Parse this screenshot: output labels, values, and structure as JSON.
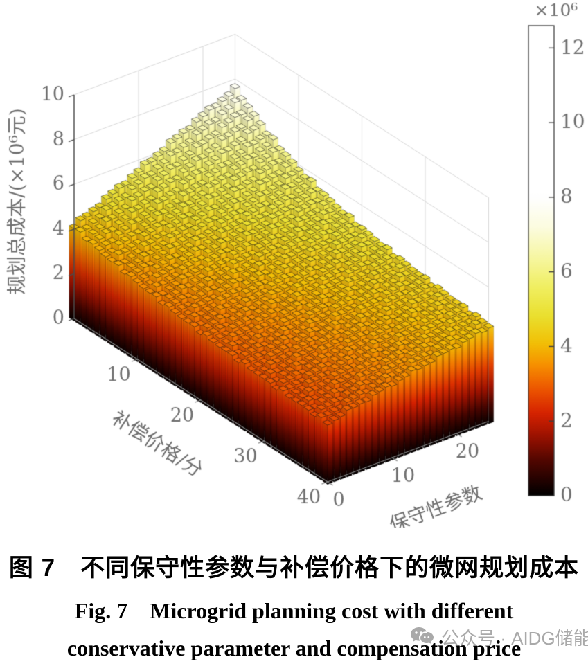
{
  "figure": {
    "caption_zh": "图 7　不同保守性参数与补偿价格下的微网规划成本",
    "caption_en_line1": "Fig. 7    Microgrid planning cost with different",
    "caption_en_line2": "conservative parameter and compensation price",
    "watermark_text": "公众号 · AIDG储能"
  },
  "chart_data": {
    "type": "bar",
    "subtype": "bar3d-surface",
    "title": "",
    "xlabel": "保守性参数",
    "ylabel": "补偿价格/分",
    "zlabel": "规划总成本/(×10⁶元)",
    "x_axis": {
      "label": "保守性参数",
      "ticks": [
        0,
        10,
        20
      ],
      "range": [
        0,
        25
      ]
    },
    "y_axis": {
      "label": "补偿价格/分",
      "ticks": [
        10,
        20,
        30,
        40
      ],
      "range": [
        0,
        40
      ]
    },
    "z_axis": {
      "label": "规划总成本/(×10⁶元)",
      "ticks": [
        0,
        2,
        4,
        6,
        8,
        10
      ],
      "range": [
        0,
        10
      ],
      "unit": "1e6 yuan"
    },
    "colorbar": {
      "label": "×10⁶",
      "ticks": [
        0,
        2,
        4,
        6,
        8,
        10,
        12
      ],
      "range": [
        0,
        12.6
      ]
    },
    "surface": {
      "comment": "Planning total cost (1e6 yuan) sampled grid; rows = param_samples (conservative parameter), cols = price_samples (compensation price, cents)",
      "param_samples": [
        0,
        5,
        10,
        15,
        20,
        25
      ],
      "price_samples": [
        0,
        5,
        10,
        15,
        20,
        25,
        30,
        35,
        40
      ],
      "z_grid_1e6": [
        [
          4.15,
          3.8,
          3.52,
          3.3,
          3.12,
          2.98,
          2.87,
          2.78,
          2.7
        ],
        [
          4.85,
          4.35,
          3.98,
          3.7,
          3.5,
          3.35,
          3.23,
          3.13,
          3.05
        ],
        [
          5.55,
          4.9,
          4.45,
          4.12,
          3.88,
          3.7,
          3.57,
          3.47,
          3.38
        ],
        [
          6.25,
          5.45,
          4.9,
          4.52,
          4.25,
          4.05,
          3.9,
          3.78,
          3.7
        ],
        [
          6.95,
          6.0,
          5.35,
          4.92,
          4.62,
          4.4,
          4.23,
          4.1,
          4.0
        ],
        [
          7.6,
          6.55,
          5.8,
          5.32,
          4.98,
          4.74,
          4.56,
          4.42,
          4.3
        ]
      ],
      "n_bars_price": 41,
      "n_bars_param": 26
    },
    "colormap_stops": [
      [
        0.0,
        "#000000"
      ],
      [
        0.9,
        "#4d0600"
      ],
      [
        1.6,
        "#9c1200"
      ],
      [
        2.2,
        "#d62200"
      ],
      [
        2.9,
        "#ee5a00"
      ],
      [
        3.5,
        "#f79000"
      ],
      [
        4.1,
        "#f2c107"
      ],
      [
        4.8,
        "#eadf2e"
      ],
      [
        5.6,
        "#f1ef62"
      ],
      [
        6.4,
        "#f7f7a4"
      ],
      [
        7.2,
        "#fcfce0"
      ],
      [
        8.0,
        "#ffffff"
      ],
      [
        12.6,
        "#ffffff"
      ]
    ],
    "grid": true,
    "legend_position": "none"
  },
  "style": {
    "background": "#ffffff",
    "grid_color": "#d9d9d9",
    "axis_color": "#8a8a8a",
    "z_axis_color": "#4b4b4b",
    "tick_text_color": "#6f6f6f",
    "caption_color": "#000000",
    "watermark_color": "#a9a9a9",
    "bar_edge_color": "#1c1c1c"
  }
}
